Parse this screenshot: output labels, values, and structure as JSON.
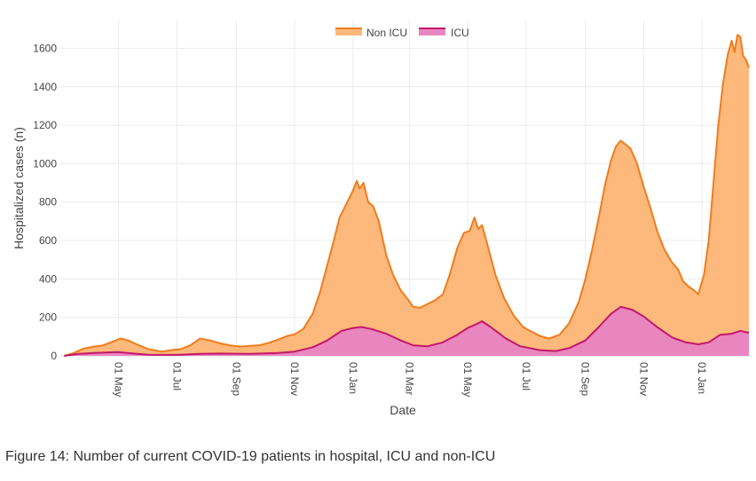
{
  "caption": "Figure 14: Number of current COVID-19 patients in hospital, ICU and non-ICU",
  "colors": {
    "non_icu_line": "#f07c1c",
    "non_icu_fill": "#fdb87b",
    "icu_line": "#c2186b",
    "icu_fill": "#ea86bf",
    "grid": "#ececec",
    "tick_text": "#444444"
  },
  "chart_data": {
    "type": "area",
    "xlabel": "Date",
    "ylabel": "Hospitalized cases (n)",
    "ylim": [
      0,
      1750
    ],
    "yticks": [
      0,
      200,
      400,
      600,
      800,
      1000,
      1200,
      1400,
      1600
    ],
    "xlim": [
      "2020-03-01",
      "2022-02-19"
    ],
    "xticks": [
      {
        "date": "2020-05-01",
        "label": "01 May"
      },
      {
        "date": "2020-07-01",
        "label": "01 Jul"
      },
      {
        "date": "2020-09-01",
        "label": "01 Sep"
      },
      {
        "date": "2020-11-01",
        "label": "01 Nov"
      },
      {
        "date": "2021-01-01",
        "label": "01 Jan"
      },
      {
        "date": "2021-03-01",
        "label": "01 Mar"
      },
      {
        "date": "2021-05-01",
        "label": "01 May"
      },
      {
        "date": "2021-07-01",
        "label": "01 Jul"
      },
      {
        "date": "2021-09-01",
        "label": "01 Sep"
      },
      {
        "date": "2021-11-01",
        "label": "01 Nov"
      },
      {
        "date": "2022-01-01",
        "label": "01 Jan"
      }
    ],
    "legend": {
      "position": "top-center",
      "entries": [
        "Non ICU",
        "ICU"
      ]
    },
    "series": [
      {
        "name": "Non ICU",
        "points": [
          [
            "2020-03-05",
            0
          ],
          [
            "2020-03-15",
            15
          ],
          [
            "2020-03-25",
            38
          ],
          [
            "2020-04-05",
            48
          ],
          [
            "2020-04-15",
            55
          ],
          [
            "2020-04-25",
            75
          ],
          [
            "2020-05-03",
            90
          ],
          [
            "2020-05-10",
            82
          ],
          [
            "2020-05-20",
            60
          ],
          [
            "2020-06-01",
            35
          ],
          [
            "2020-06-15",
            22
          ],
          [
            "2020-06-25",
            30
          ],
          [
            "2020-07-05",
            35
          ],
          [
            "2020-07-15",
            55
          ],
          [
            "2020-07-25",
            90
          ],
          [
            "2020-08-05",
            80
          ],
          [
            "2020-08-15",
            65
          ],
          [
            "2020-08-25",
            55
          ],
          [
            "2020-09-05",
            48
          ],
          [
            "2020-09-15",
            52
          ],
          [
            "2020-09-25",
            55
          ],
          [
            "2020-10-05",
            68
          ],
          [
            "2020-10-15",
            85
          ],
          [
            "2020-10-25",
            105
          ],
          [
            "2020-11-01",
            112
          ],
          [
            "2020-11-10",
            140
          ],
          [
            "2020-11-20",
            220
          ],
          [
            "2020-11-28",
            340
          ],
          [
            "2020-12-05",
            470
          ],
          [
            "2020-12-12",
            600
          ],
          [
            "2020-12-18",
            720
          ],
          [
            "2020-12-25",
            790
          ],
          [
            "2021-01-01",
            860
          ],
          [
            "2021-01-05",
            910
          ],
          [
            "2021-01-08",
            870
          ],
          [
            "2021-01-12",
            900
          ],
          [
            "2021-01-17",
            800
          ],
          [
            "2021-01-22",
            780
          ],
          [
            "2021-01-28",
            700
          ],
          [
            "2021-02-05",
            520
          ],
          [
            "2021-02-12",
            420
          ],
          [
            "2021-02-20",
            340
          ],
          [
            "2021-02-28",
            290
          ],
          [
            "2021-03-05",
            255
          ],
          [
            "2021-03-12",
            250
          ],
          [
            "2021-03-20",
            270
          ],
          [
            "2021-03-28",
            290
          ],
          [
            "2021-04-05",
            320
          ],
          [
            "2021-04-12",
            420
          ],
          [
            "2021-04-20",
            560
          ],
          [
            "2021-04-27",
            640
          ],
          [
            "2021-05-03",
            650
          ],
          [
            "2021-05-08",
            720
          ],
          [
            "2021-05-12",
            660
          ],
          [
            "2021-05-16",
            680
          ],
          [
            "2021-05-22",
            570
          ],
          [
            "2021-05-30",
            420
          ],
          [
            "2021-06-08",
            300
          ],
          [
            "2021-06-18",
            210
          ],
          [
            "2021-06-28",
            150
          ],
          [
            "2021-07-05",
            130
          ],
          [
            "2021-07-15",
            105
          ],
          [
            "2021-07-25",
            90
          ],
          [
            "2021-08-05",
            110
          ],
          [
            "2021-08-15",
            170
          ],
          [
            "2021-08-25",
            280
          ],
          [
            "2021-09-01",
            400
          ],
          [
            "2021-09-08",
            550
          ],
          [
            "2021-09-15",
            720
          ],
          [
            "2021-09-22",
            900
          ],
          [
            "2021-09-28",
            1020
          ],
          [
            "2021-10-03",
            1090
          ],
          [
            "2021-10-08",
            1120
          ],
          [
            "2021-10-13",
            1100
          ],
          [
            "2021-10-18",
            1080
          ],
          [
            "2021-10-25",
            1000
          ],
          [
            "2021-11-01",
            880
          ],
          [
            "2021-11-08",
            770
          ],
          [
            "2021-11-15",
            650
          ],
          [
            "2021-11-22",
            560
          ],
          [
            "2021-11-30",
            490
          ],
          [
            "2021-12-07",
            450
          ],
          [
            "2021-12-12",
            390
          ],
          [
            "2021-12-18",
            360
          ],
          [
            "2021-12-24",
            340
          ],
          [
            "2021-12-28",
            320
          ],
          [
            "2022-01-03",
            420
          ],
          [
            "2022-01-08",
            600
          ],
          [
            "2022-01-13",
            900
          ],
          [
            "2022-01-18",
            1200
          ],
          [
            "2022-01-23",
            1420
          ],
          [
            "2022-01-28",
            1570
          ],
          [
            "2022-02-01",
            1640
          ],
          [
            "2022-02-04",
            1580
          ],
          [
            "2022-02-07",
            1670
          ],
          [
            "2022-02-10",
            1660
          ],
          [
            "2022-02-13",
            1560
          ],
          [
            "2022-02-16",
            1540
          ],
          [
            "2022-02-19",
            1500
          ]
        ]
      },
      {
        "name": "ICU",
        "points": [
          [
            "2020-03-05",
            0
          ],
          [
            "2020-03-20",
            10
          ],
          [
            "2020-04-05",
            15
          ],
          [
            "2020-04-20",
            18
          ],
          [
            "2020-05-01",
            20
          ],
          [
            "2020-05-10",
            15
          ],
          [
            "2020-06-01",
            6
          ],
          [
            "2020-07-01",
            5
          ],
          [
            "2020-07-25",
            10
          ],
          [
            "2020-08-15",
            12
          ],
          [
            "2020-09-15",
            10
          ],
          [
            "2020-10-15",
            15
          ],
          [
            "2020-11-01",
            22
          ],
          [
            "2020-11-20",
            45
          ],
          [
            "2020-12-05",
            80
          ],
          [
            "2020-12-20",
            130
          ],
          [
            "2021-01-01",
            145
          ],
          [
            "2021-01-10",
            150
          ],
          [
            "2021-01-20",
            140
          ],
          [
            "2021-02-05",
            115
          ],
          [
            "2021-02-20",
            80
          ],
          [
            "2021-03-05",
            55
          ],
          [
            "2021-03-20",
            50
          ],
          [
            "2021-04-05",
            70
          ],
          [
            "2021-04-20",
            110
          ],
          [
            "2021-05-01",
            145
          ],
          [
            "2021-05-10",
            165
          ],
          [
            "2021-05-16",
            180
          ],
          [
            "2021-05-25",
            150
          ],
          [
            "2021-06-10",
            90
          ],
          [
            "2021-06-25",
            50
          ],
          [
            "2021-07-15",
            30
          ],
          [
            "2021-08-01",
            25
          ],
          [
            "2021-08-15",
            40
          ],
          [
            "2021-09-01",
            80
          ],
          [
            "2021-09-15",
            150
          ],
          [
            "2021-09-28",
            220
          ],
          [
            "2021-10-08",
            255
          ],
          [
            "2021-10-20",
            240
          ],
          [
            "2021-11-01",
            205
          ],
          [
            "2021-11-15",
            150
          ],
          [
            "2021-12-01",
            95
          ],
          [
            "2021-12-15",
            70
          ],
          [
            "2021-12-28",
            60
          ],
          [
            "2022-01-08",
            70
          ],
          [
            "2022-01-20",
            110
          ],
          [
            "2022-02-01",
            115
          ],
          [
            "2022-02-10",
            130
          ],
          [
            "2022-02-19",
            120
          ]
        ]
      }
    ]
  }
}
